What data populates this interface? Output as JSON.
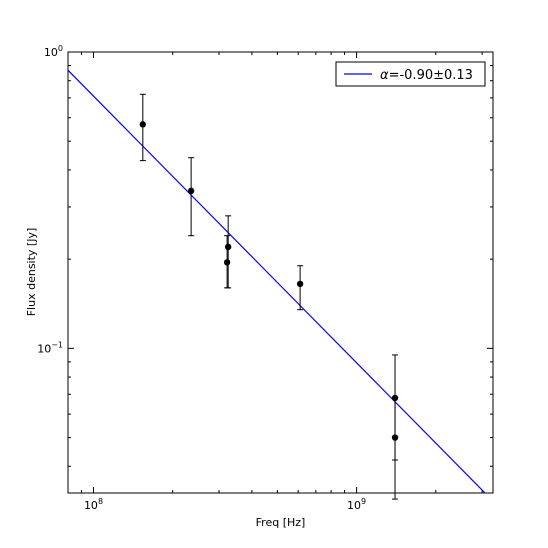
{
  "chart_data": {
    "type": "scatter",
    "xlabel": "Freq [Hz]",
    "ylabel": "Flux density [Jy]",
    "x_scale": "log",
    "y_scale": "log",
    "xlim": [
      80000000,
      3300000000
    ],
    "ylim": [
      0.0325,
      1.0
    ],
    "x_ticks": [
      {
        "value": 100000000,
        "base": "10",
        "exp": "8"
      },
      {
        "value": 1000000000,
        "base": "10",
        "exp": "9"
      }
    ],
    "y_ticks": [
      {
        "value": 0.1,
        "base": "10",
        "exp": "−1"
      },
      {
        "value": 1.0,
        "base": "10",
        "exp": "0"
      }
    ],
    "points": [
      {
        "x": 154000000,
        "y": 0.57,
        "y_low": 0.43,
        "y_high": 0.72
      },
      {
        "x": 235000000,
        "y": 0.34,
        "y_low": 0.24,
        "y_high": 0.44
      },
      {
        "x": 325000000,
        "y": 0.22,
        "y_low": 0.16,
        "y_high": 0.28
      },
      {
        "x": 322000000,
        "y": 0.195,
        "y_low": 0.16,
        "y_high": 0.24
      },
      {
        "x": 610000000,
        "y": 0.165,
        "y_low": 0.135,
        "y_high": 0.19
      },
      {
        "x": 1400000000,
        "y": 0.068,
        "y_low": 0.042,
        "y_high": 0.095
      },
      {
        "x": 1400000000,
        "y": 0.05,
        "y_low": 0.031,
        "y_high": 0.068
      }
    ],
    "fit": {
      "label_symbol": "α",
      "label_value": "=-0.90±0.13",
      "alpha": -0.9,
      "ref_x": 100000000,
      "ref_y": 0.71,
      "color": "#0000ff"
    },
    "legend_position": "top-right",
    "grid": false,
    "point_color": "#000000"
  }
}
